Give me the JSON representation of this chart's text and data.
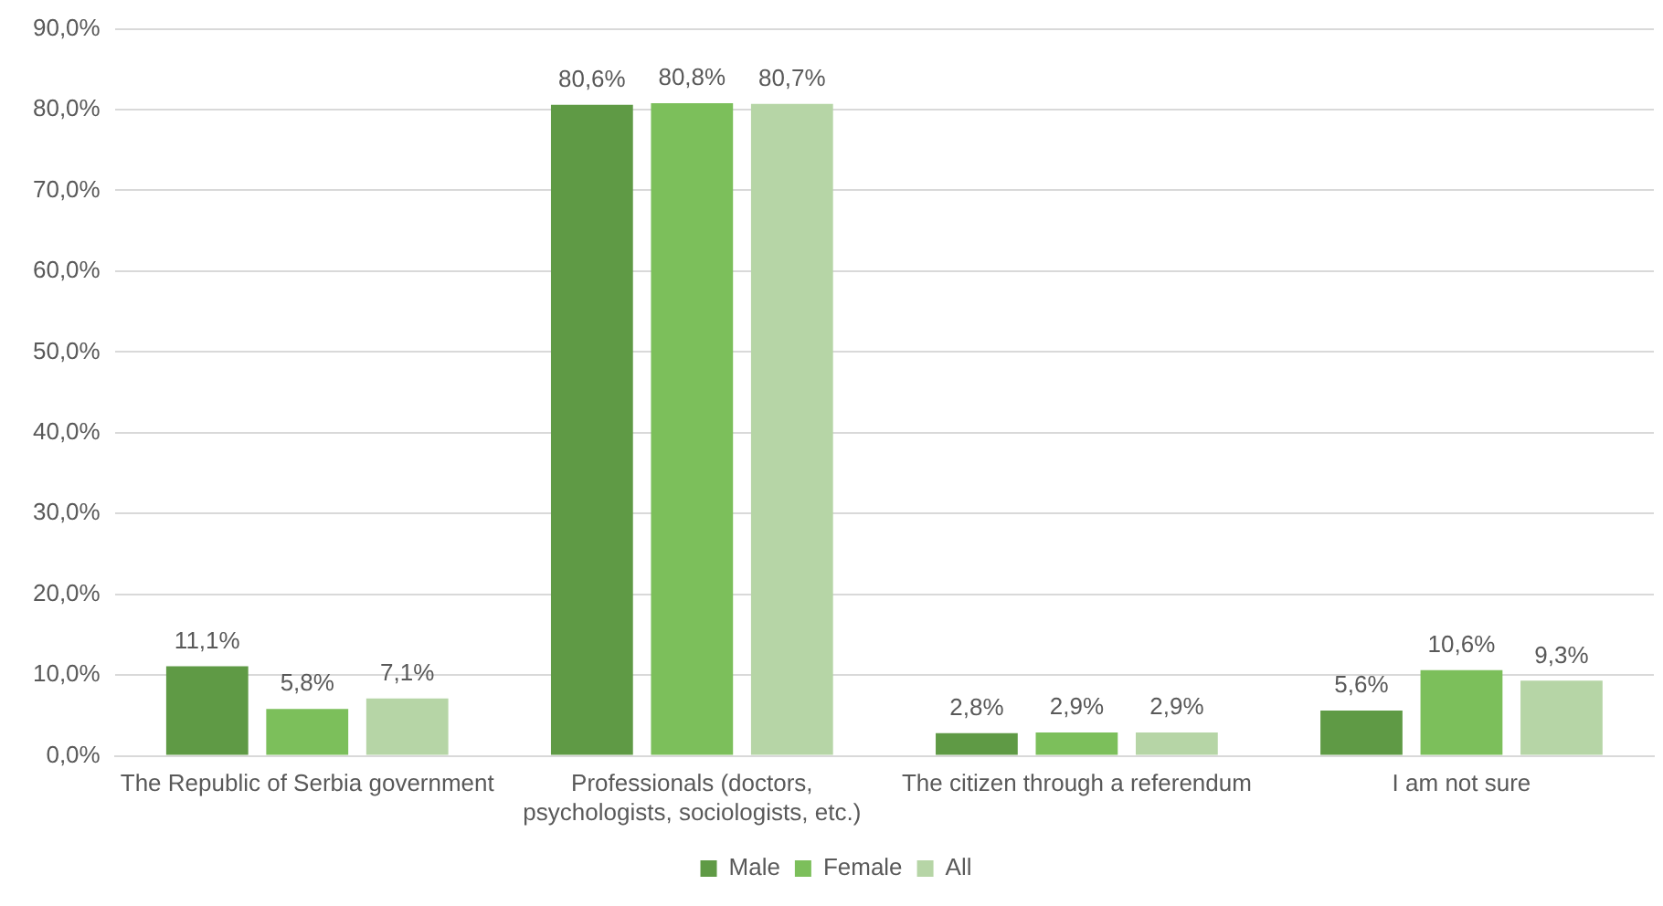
{
  "chart_data": {
    "type": "bar",
    "categories": [
      "The Republic of Serbia government",
      "Professionals (doctors, psychologists, sociologists, etc.)",
      "The citizen through a referendum",
      "I am not sure"
    ],
    "series": [
      {
        "name": "Male",
        "color": "#5f9a45",
        "values": [
          11.1,
          80.6,
          2.8,
          5.6
        ],
        "value_labels": [
          "11,1%",
          "80,6%",
          "2,8%",
          "5,6%"
        ]
      },
      {
        "name": "Female",
        "color": "#7cbf5b",
        "values": [
          5.8,
          80.8,
          2.9,
          10.6
        ],
        "value_labels": [
          "5,8%",
          "80,8%",
          "2,9%",
          "10,6%"
        ]
      },
      {
        "name": "All",
        "color": "#b6d5a6",
        "values": [
          7.1,
          80.7,
          2.9,
          9.3
        ],
        "value_labels": [
          "7,1%",
          "80,7%",
          "2,9%",
          "9,3%"
        ]
      }
    ],
    "ylim": [
      0,
      90
    ],
    "yticks": [
      {
        "value": 0,
        "label": "0,0%"
      },
      {
        "value": 10,
        "label": "10,0%"
      },
      {
        "value": 20,
        "label": "20,0%"
      },
      {
        "value": 30,
        "label": "30,0%"
      },
      {
        "value": 40,
        "label": "40,0%"
      },
      {
        "value": 50,
        "label": "50,0%"
      },
      {
        "value": 60,
        "label": "60,0%"
      },
      {
        "value": 70,
        "label": "70,0%"
      },
      {
        "value": 80,
        "label": "80,0%"
      },
      {
        "value": 90,
        "label": "90,0%"
      }
    ],
    "grid": "y",
    "legend": "bottom"
  }
}
